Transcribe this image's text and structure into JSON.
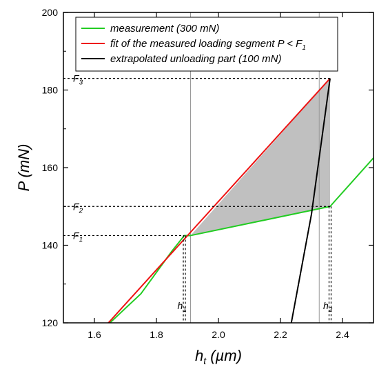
{
  "chart_data": {
    "type": "line",
    "xlabel": "h",
    "xlabel_sub": "t",
    "xlabel_unit": " (µm)",
    "ylabel": "P (mN)",
    "xlim": [
      1.5,
      2.5
    ],
    "ylim": [
      120,
      200
    ],
    "xticks": [
      1.6,
      1.8,
      2.0,
      2.2,
      2.4
    ],
    "xtick_labels": [
      "1.6",
      "1.8",
      "2.0",
      "2.2",
      "2.4"
    ],
    "yticks": [
      120,
      140,
      160,
      180,
      200
    ],
    "ytick_labels": [
      "120",
      "140",
      "160",
      "180",
      "200"
    ],
    "grid": false,
    "legend_position": "top",
    "series": [
      {
        "name": "measurement (300 mN)",
        "color": "#22cc22",
        "x": [
          1.65,
          1.75,
          1.85,
          1.89,
          1.91,
          2.36,
          2.5
        ],
        "y": [
          120,
          127.5,
          138.5,
          142.5,
          142.5,
          150,
          162.5
        ]
      },
      {
        "name": "fit of the measured loading segment P < F",
        "name_sub": "1",
        "color": "#ee1111",
        "x": [
          1.645,
          2.36
        ],
        "y": [
          120,
          183
        ]
      },
      {
        "name": "extrapolated unloading part (100 mN)",
        "color": "#000000",
        "x": [
          2.235,
          2.3,
          2.36
        ],
        "y": [
          120,
          148,
          183
        ]
      }
    ],
    "shaded_region": {
      "color": "#c0c0c0",
      "x": [
        1.91,
        2.36,
        2.36
      ],
      "y": [
        142.5,
        150,
        183
      ]
    },
    "vertical_lines": [
      {
        "x": 1.91,
        "color": "#999999"
      },
      {
        "x": 2.325,
        "color": "#999999"
      }
    ],
    "annotations": [
      {
        "label": "F",
        "sub": "3",
        "x": 2.36,
        "y": 183
      },
      {
        "label": "F",
        "sub": "2",
        "x": 2.36,
        "y": 150
      },
      {
        "label": "F",
        "sub": "1",
        "x": 1.89,
        "y": 142.5
      },
      {
        "label": "h",
        "sub": "1",
        "x": 1.89,
        "y": 142.5
      },
      {
        "label": "h",
        "sub": "2",
        "x": 2.36,
        "y": 150
      }
    ]
  }
}
